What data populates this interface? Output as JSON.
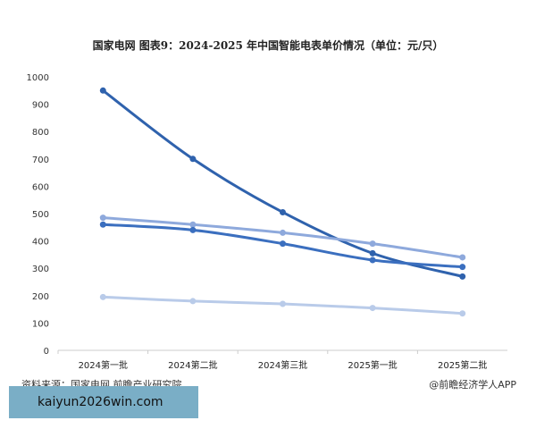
{
  "chart_data": {
    "type": "line",
    "title": "国家电网  图表9：2024-2025 年中国智能电表单价情况（单位：元/只）",
    "categories": [
      "2024第一批",
      "2024第二批",
      "2024第三批",
      "2025第一批",
      "2025第二批"
    ],
    "ylim": [
      0,
      1000
    ],
    "yticks": [
      0,
      100,
      200,
      300,
      400,
      500,
      600,
      700,
      800,
      900,
      1000
    ],
    "grid": false,
    "series": [
      {
        "values": [
          950,
          700,
          505,
          355,
          270
        ],
        "color": "#2f62ad"
      },
      {
        "values": [
          485,
          460,
          430,
          390,
          340
        ],
        "color": "#8ea9dc"
      },
      {
        "values": [
          460,
          440,
          390,
          330,
          305
        ],
        "color": "#3b6fbf"
      },
      {
        "values": [
          195,
          180,
          170,
          155,
          135
        ],
        "color": "#b9cbe9"
      }
    ]
  },
  "footer": {
    "source": "资料来源：国家电网 前瞻产业研究院",
    "credit": "@前瞻经济学人APP"
  },
  "banner": {
    "text": "kaiyun2026win.com"
  }
}
